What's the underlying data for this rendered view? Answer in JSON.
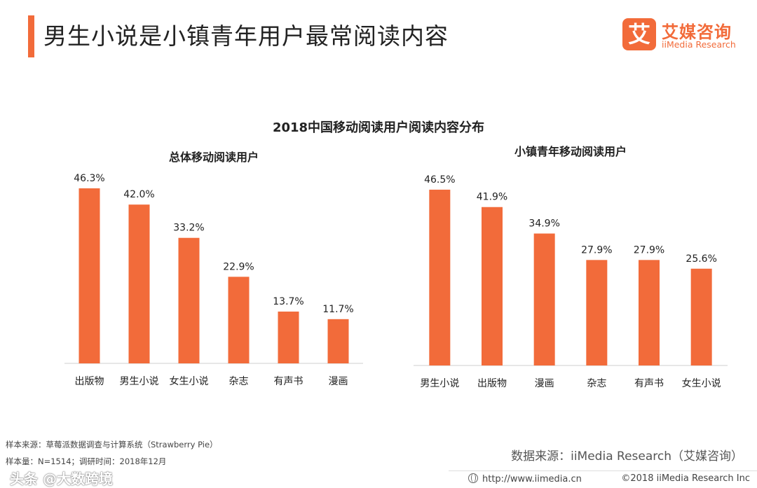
{
  "header": {
    "title": "男生小说是小镇青年用户最常阅读内容",
    "accent_color": "#F26B3A"
  },
  "brand": {
    "logo_glyph": "艾",
    "name_cn": "艾媒咨询",
    "name_en": "iiMedia Research"
  },
  "chart_data": [
    {
      "type": "bar",
      "title": "总体移动阅读用户",
      "categories": [
        "出版物",
        "男生小说",
        "女生小说",
        "杂志",
        "有声书",
        "漫画"
      ],
      "values": [
        46.3,
        42.0,
        33.2,
        22.9,
        13.7,
        11.7
      ],
      "labels": [
        "46.3%",
        "42.0%",
        "33.2%",
        "22.9%",
        "13.7%",
        "11.7%"
      ],
      "unit": "%",
      "ylim": [
        0,
        50
      ],
      "color": "#F26B3A"
    },
    {
      "type": "bar",
      "title": "小镇青年移动阅读用户",
      "categories": [
        "男生小说",
        "出版物",
        "漫画",
        "杂志",
        "有声书",
        "女生小说"
      ],
      "values": [
        46.5,
        41.9,
        34.9,
        27.9,
        27.9,
        25.6
      ],
      "labels": [
        "46.5%",
        "41.9%",
        "34.9%",
        "27.9%",
        "27.9%",
        "25.6%"
      ],
      "unit": "%",
      "ylim": [
        0,
        50
      ],
      "color": "#F26B3A"
    }
  ],
  "chart": {
    "main_title": "2018中国移动阅读用户阅读内容分布"
  },
  "footnotes": {
    "sample_source": "样本来源：草莓派数据调查与计算系统（Strawberry Pie）",
    "sample_size": "样本量：N=1514；调研时间：2018年12月"
  },
  "source": {
    "text": "数据来源：iiMedia Research（艾媒咨询）"
  },
  "footer": {
    "url": "http://www.iimedia.cn",
    "copyright": "©2018  iiMedia Research  Inc"
  },
  "watermark": {
    "text": "头条 @大数跨境"
  }
}
